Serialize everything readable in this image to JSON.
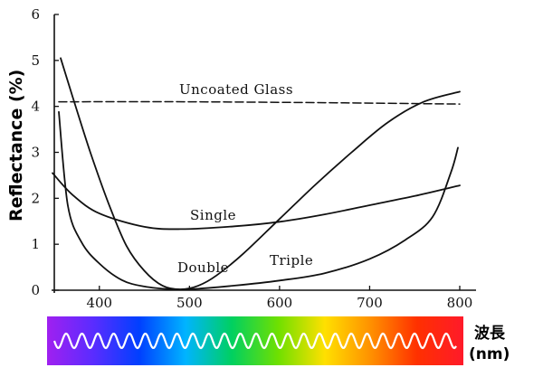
{
  "chart_data": {
    "type": "line",
    "title": "",
    "xlabel": "",
    "ylabel": "Reflectance (%)",
    "xlim": [
      350,
      800
    ],
    "ylim": [
      0,
      6
    ],
    "x_ticks": [
      "400",
      "500",
      "600",
      "700",
      "800"
    ],
    "y_ticks": [
      "0",
      "1",
      "2",
      "3",
      "4",
      "5",
      "6"
    ],
    "grid": false,
    "series": [
      {
        "name": "Uncoated Glass",
        "style": "dashed",
        "x": [
          355,
          500,
          650,
          800
        ],
        "y": [
          4.1,
          4.1,
          4.08,
          4.05
        ]
      },
      {
        "name": "Single",
        "style": "solid",
        "x": [
          348,
          370,
          400,
          450,
          490,
          550,
          600,
          650,
          700,
          750,
          800
        ],
        "y": [
          2.55,
          2.08,
          1.67,
          1.38,
          1.33,
          1.39,
          1.49,
          1.65,
          1.85,
          2.05,
          2.28
        ]
      },
      {
        "name": "Double",
        "style": "solid",
        "x": [
          357,
          370,
          390,
          410,
          430,
          450,
          470,
          490,
          510,
          530,
          560,
          600,
          640,
          680,
          720,
          760,
          800
        ],
        "y": [
          5.05,
          4.23,
          3.0,
          1.9,
          0.97,
          0.42,
          0.1,
          0.02,
          0.1,
          0.32,
          0.8,
          1.55,
          2.3,
          3.0,
          3.65,
          4.1,
          4.32
        ]
      },
      {
        "name": "Triple",
        "style": "solid",
        "x": [
          355,
          365,
          380,
          400,
          425,
          450,
          480,
          500,
          550,
          600,
          650,
          700,
          740,
          770,
          790,
          798
        ],
        "y": [
          3.88,
          1.85,
          1.05,
          0.58,
          0.22,
          0.08,
          0.02,
          0.02,
          0.1,
          0.21,
          0.37,
          0.68,
          1.1,
          1.6,
          2.55,
          3.1
        ]
      }
    ],
    "annotations": [
      "Uncoated Glass",
      "Single",
      "Double",
      "Triple"
    ]
  },
  "wavelength_label": "波長\n(nm)",
  "spectrum_colors": [
    "#a020f0",
    "#5a2cff",
    "#0040ff",
    "#00b4ff",
    "#00d060",
    "#70e000",
    "#ffe000",
    "#ff9000",
    "#ff3000",
    "#ff1a2a"
  ],
  "colors": {
    "axis": "#111111",
    "curve": "#111111",
    "wave": "#ffffff"
  }
}
